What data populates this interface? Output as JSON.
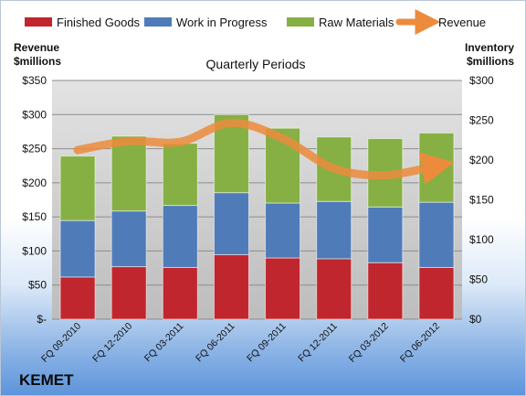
{
  "chart_data": {
    "type": "bar",
    "title": "Quarterly Periods",
    "company": "KEMET",
    "categories": [
      "FQ 09-2010",
      "FQ 12-2010",
      "FQ 03-2011",
      "FQ 06-2011",
      "FQ 09-2011",
      "FQ 12-2011",
      "FQ 03-2012",
      "FQ 06-2012"
    ],
    "left_axis_title": [
      "Revenue",
      "$millions"
    ],
    "right_axis_title": [
      "Inventory",
      "$millions"
    ],
    "left_ylim": [
      0,
      350
    ],
    "right_ylim": [
      0,
      300
    ],
    "left_ticks": [
      "$-",
      "$50",
      "$100",
      "$150",
      "$200",
      "$250",
      "$300",
      "$350"
    ],
    "right_ticks": [
      "$0",
      "$50",
      "$100",
      "$150",
      "$200",
      "$250",
      "$300"
    ],
    "series": [
      {
        "name": "Finished Goods",
        "axis": "right",
        "type": "stacked-bar",
        "color": "#c0262d",
        "values": [
          53,
          66,
          65,
          81,
          77,
          76,
          71,
          65
        ]
      },
      {
        "name": "Work in Progress",
        "axis": "right",
        "type": "stacked-bar",
        "color": "#4f7bb8",
        "values": [
          71,
          70,
          78,
          78,
          69,
          72,
          70,
          82
        ]
      },
      {
        "name": "Raw Materials",
        "axis": "right",
        "type": "stacked-bar",
        "color": "#86b043",
        "values": [
          81,
          94,
          78,
          98,
          94,
          81,
          86,
          87
        ]
      },
      {
        "name": "Revenue",
        "axis": "left",
        "type": "line",
        "color": "#ec8b3c",
        "values": [
          248,
          261,
          260,
          288,
          265,
          221,
          211,
          225
        ]
      }
    ],
    "grid": true,
    "legend_position": "top"
  }
}
